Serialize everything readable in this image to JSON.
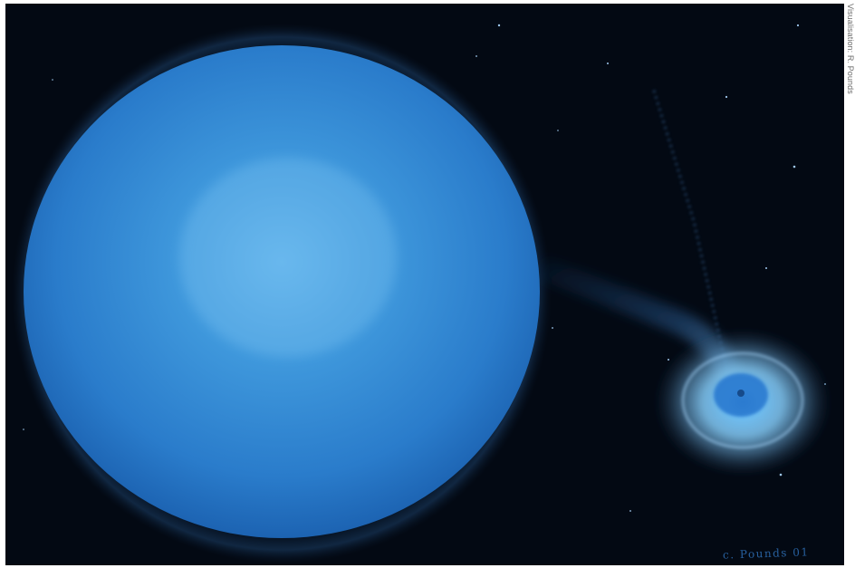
{
  "credit": "Visualisation: R. Pounds",
  "signature": "c. Pounds 01",
  "colors": {
    "background": "#030913",
    "star_center": "#4fa6e6",
    "star_edge": "#1c63b8",
    "disk_center": "#8fd0ff",
    "disk_ring": "#6fa8d8"
  },
  "icons": [
    "blue-star",
    "accretion-disk",
    "gas-stream",
    "star-field"
  ]
}
